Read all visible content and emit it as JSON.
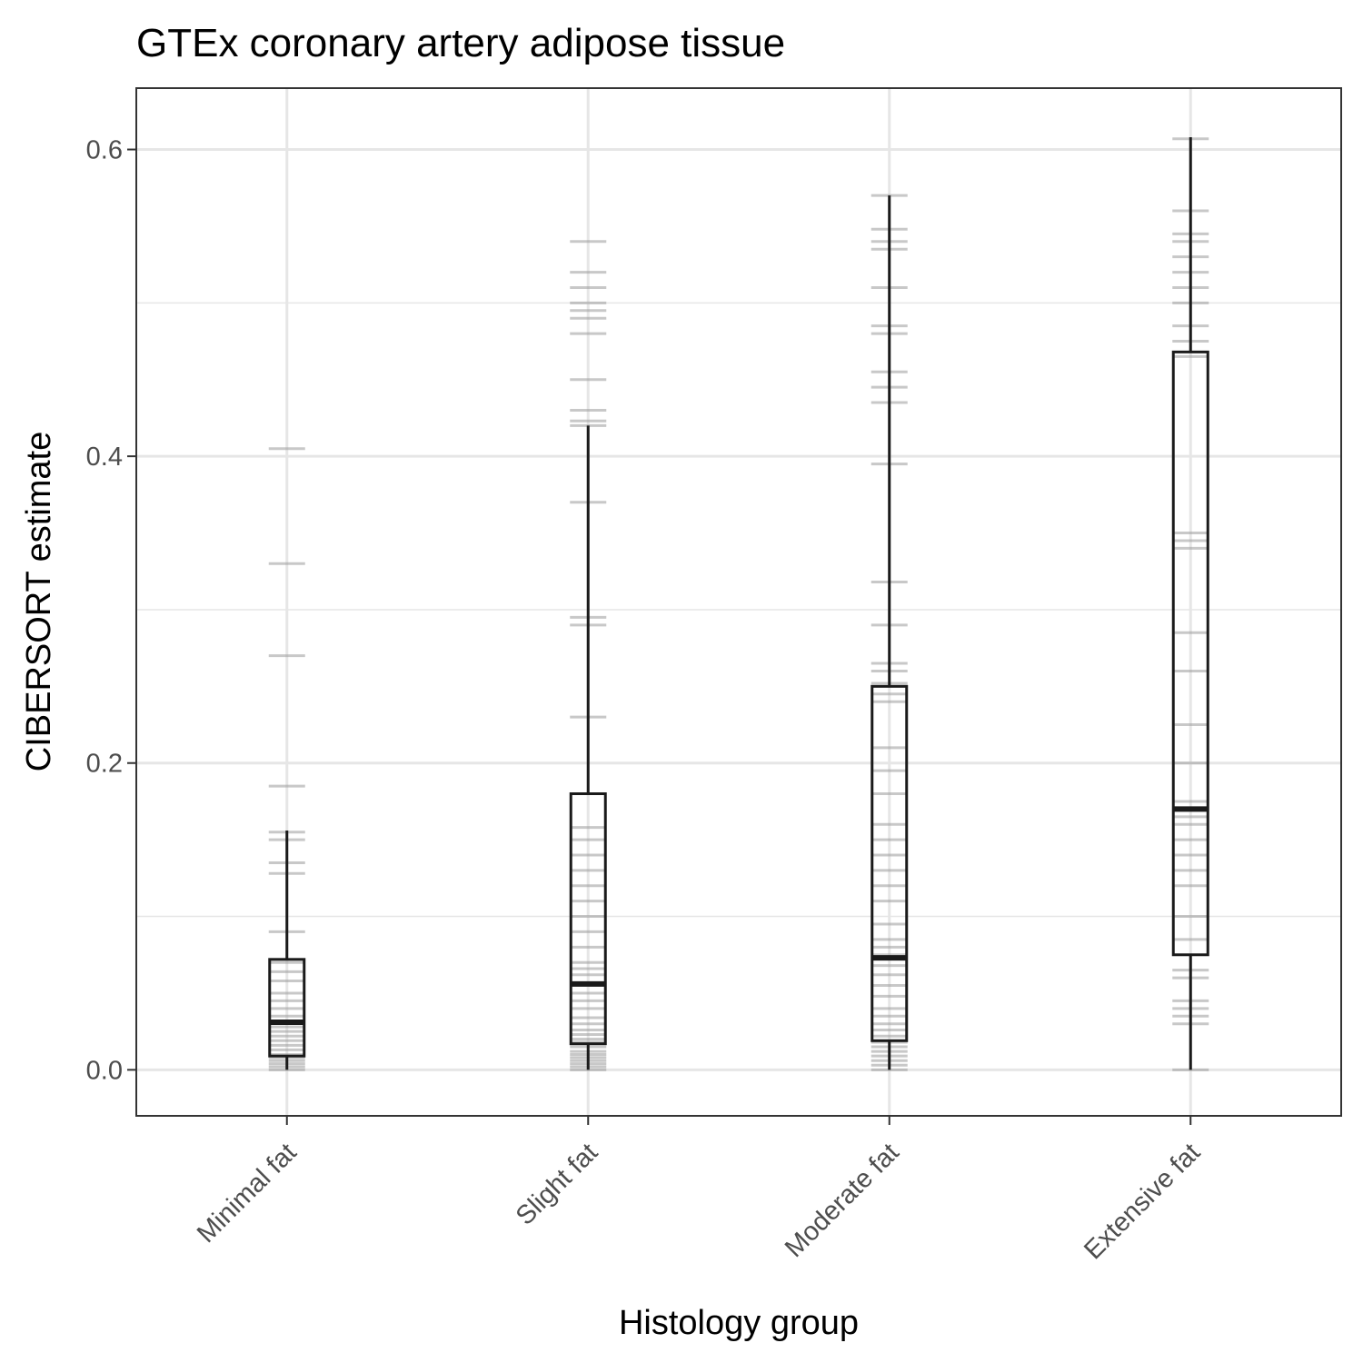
{
  "chart_data": {
    "type": "boxplot",
    "title": "GTEx coronary artery adipose tissue",
    "xlabel": "Histology group",
    "ylabel": "CIBERSORT estimate",
    "ylim": [
      -0.03,
      0.64
    ],
    "yticks": [
      0.0,
      0.2,
      0.4,
      0.6
    ],
    "ytick_labels": [
      "0.0",
      "0.2",
      "0.4",
      "0.6"
    ],
    "grid": true,
    "legend": "none",
    "categories": [
      "Minimal fat",
      "Slight fat",
      "Moderate fat",
      "Extensive fat"
    ],
    "colors": {
      "box": "#1a1a1a",
      "points": "#9a9a9a",
      "grid": "#e6e6e6",
      "tick_text": "#4d4d4d"
    },
    "boxes": [
      {
        "category": "Minimal fat",
        "q1": 0.009,
        "median": 0.031,
        "q3": 0.072,
        "whisker_low": 0.0,
        "whisker_high": 0.156
      },
      {
        "category": "Slight fat",
        "q1": 0.017,
        "median": 0.056,
        "q3": 0.18,
        "whisker_low": 0.0,
        "whisker_high": 0.42
      },
      {
        "category": "Moderate fat",
        "q1": 0.019,
        "median": 0.073,
        "q3": 0.25,
        "whisker_low": 0.0,
        "whisker_high": 0.57
      },
      {
        "category": "Extensive fat",
        "q1": 0.075,
        "median": 0.17,
        "q3": 0.468,
        "whisker_low": 0.0,
        "whisker_high": 0.608
      }
    ],
    "points": [
      [
        0.0,
        0.002,
        0.004,
        0.006,
        0.008,
        0.01,
        0.013,
        0.016,
        0.019,
        0.022,
        0.025,
        0.028,
        0.031,
        0.035,
        0.04,
        0.045,
        0.05,
        0.058,
        0.064,
        0.07,
        0.09,
        0.128,
        0.135,
        0.15,
        0.155,
        0.185,
        0.27,
        0.33,
        0.405
      ],
      [
        0.0,
        0.002,
        0.004,
        0.006,
        0.008,
        0.01,
        0.012,
        0.015,
        0.018,
        0.02,
        0.023,
        0.026,
        0.03,
        0.034,
        0.04,
        0.045,
        0.05,
        0.056,
        0.062,
        0.066,
        0.07,
        0.08,
        0.09,
        0.1,
        0.11,
        0.12,
        0.13,
        0.14,
        0.15,
        0.158,
        0.23,
        0.29,
        0.295,
        0.37,
        0.42,
        0.423,
        0.43,
        0.45,
        0.48,
        0.49,
        0.495,
        0.5,
        0.51,
        0.52,
        0.54
      ],
      [
        0.0,
        0.003,
        0.006,
        0.009,
        0.012,
        0.015,
        0.018,
        0.022,
        0.026,
        0.03,
        0.035,
        0.04,
        0.048,
        0.055,
        0.062,
        0.068,
        0.075,
        0.08,
        0.085,
        0.095,
        0.11,
        0.12,
        0.13,
        0.14,
        0.15,
        0.16,
        0.18,
        0.195,
        0.21,
        0.24,
        0.245,
        0.252,
        0.26,
        0.265,
        0.29,
        0.318,
        0.395,
        0.435,
        0.445,
        0.455,
        0.48,
        0.485,
        0.51,
        0.535,
        0.54,
        0.548,
        0.57
      ],
      [
        0.0,
        0.03,
        0.035,
        0.04,
        0.045,
        0.06,
        0.065,
        0.085,
        0.1,
        0.12,
        0.13,
        0.14,
        0.15,
        0.16,
        0.165,
        0.175,
        0.2,
        0.225,
        0.26,
        0.285,
        0.34,
        0.345,
        0.35,
        0.465,
        0.475,
        0.485,
        0.5,
        0.51,
        0.52,
        0.53,
        0.54,
        0.545,
        0.56,
        0.607
      ]
    ]
  }
}
